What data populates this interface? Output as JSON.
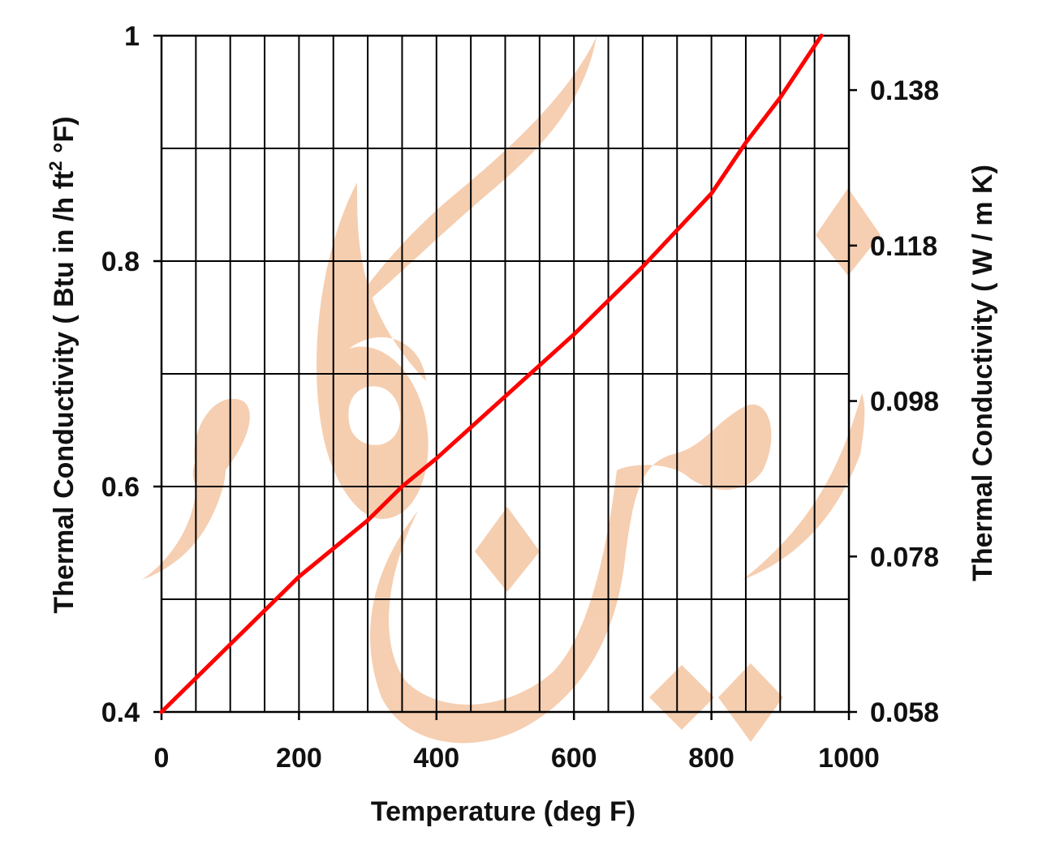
{
  "chart_data": {
    "type": "line",
    "xlabel": "Temperature (deg F)",
    "ylabel": "Thermal Conductivity (  Btu in /h ft",
    "ylabel_sup": "2",
    "ylabel_end": " °F)",
    "y2label": "Thermal Conductivity (  W / m K)",
    "xlim": [
      0,
      1000
    ],
    "ylim": [
      0.4,
      1.0
    ],
    "y2lim": [
      0.058,
      0.145
    ],
    "x_tick_labels": [
      "0",
      "200",
      "400",
      "600",
      "800",
      "1000"
    ],
    "y_tick_labels": [
      "0.4",
      "0.6",
      "0.8",
      "1"
    ],
    "y2_tick_labels": [
      "0.058",
      "0.078",
      "0.098",
      "0.118",
      "0.138"
    ],
    "x_ticks": [
      0,
      200,
      400,
      600,
      800,
      1000
    ],
    "y_ticks": [
      0.4,
      0.6,
      0.8,
      1.0
    ],
    "y2_ticks": [
      0.058,
      0.078,
      0.098,
      0.118,
      0.138
    ],
    "grid": true,
    "series": [
      {
        "color": "#ff0000",
        "x": [
          0,
          100,
          200,
          300,
          350,
          400,
          500,
          600,
          700,
          800,
          850,
          900,
          960
        ],
        "y": [
          0.4,
          0.46,
          0.52,
          0.57,
          0.6,
          0.625,
          0.68,
          0.735,
          0.795,
          0.86,
          0.905,
          0.945,
          1.0
        ]
      }
    ]
  }
}
